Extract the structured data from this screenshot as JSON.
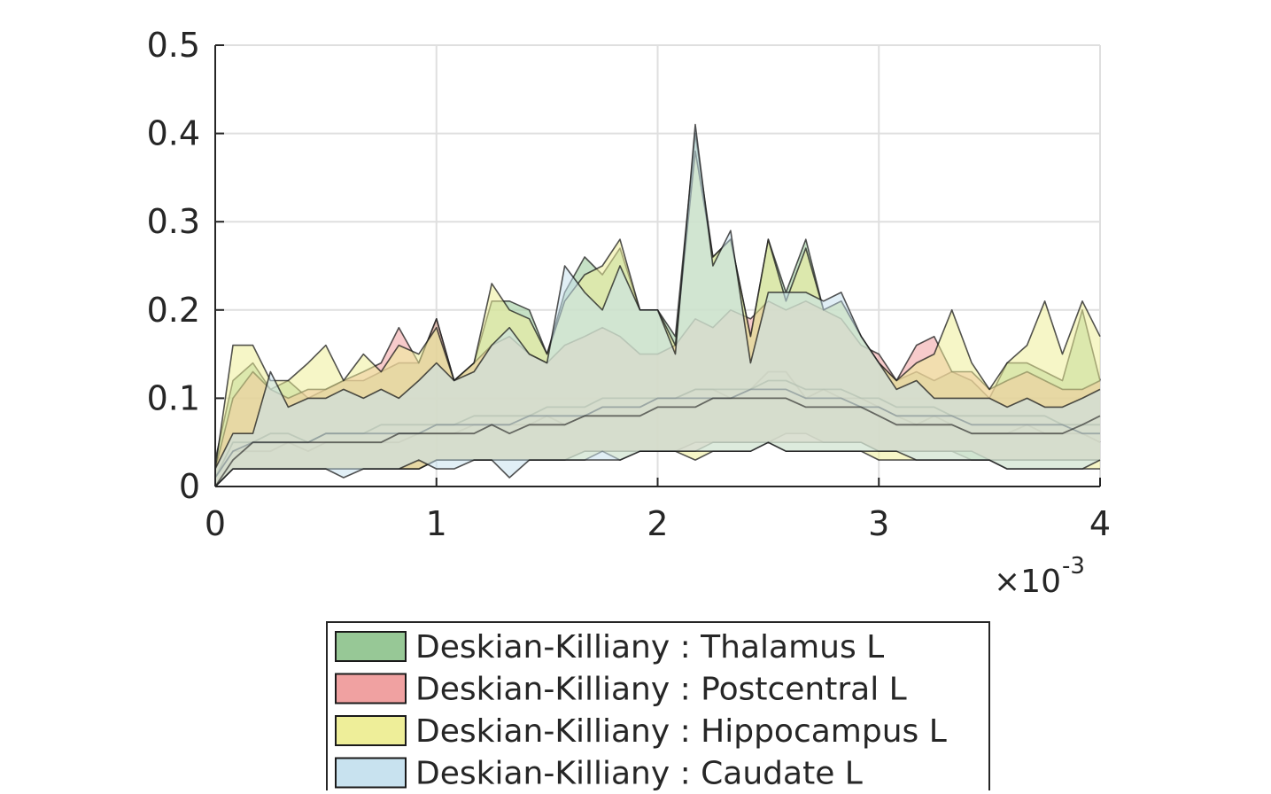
{
  "chart_data": {
    "type": "area",
    "title": "",
    "xlabel": "",
    "ylabel": "",
    "x_exponent_label": "×10",
    "x_exponent_power": "-3",
    "xlim": [
      0,
      4
    ],
    "ylim": [
      0,
      0.5
    ],
    "xticks": [
      0,
      1,
      2,
      3,
      4
    ],
    "xtick_labels": [
      "0",
      "1",
      "2",
      "3",
      "4"
    ],
    "yticks": [
      0,
      0.1,
      0.2,
      0.3,
      0.4,
      0.5
    ],
    "ytick_labels": [
      "0",
      "0.1",
      "0.2",
      "0.3",
      "0.4",
      "0.5"
    ],
    "grid": true,
    "legend_position": "bottom-center",
    "x": [
      0,
      0.08,
      0.17,
      0.25,
      0.33,
      0.42,
      0.5,
      0.58,
      0.67,
      0.75,
      0.83,
      0.92,
      1.0,
      1.08,
      1.17,
      1.25,
      1.33,
      1.42,
      1.5,
      1.58,
      1.67,
      1.75,
      1.83,
      1.92,
      2.0,
      2.08,
      2.17,
      2.25,
      2.33,
      2.42,
      2.5,
      2.58,
      2.67,
      2.75,
      2.83,
      2.92,
      3.0,
      3.08,
      3.17,
      3.25,
      3.33,
      3.42,
      3.5,
      3.58,
      3.67,
      3.75,
      3.83,
      3.92,
      4.0
    ],
    "series": [
      {
        "name": "Deskian-Killiany : Thalamus L",
        "color": "#97c896",
        "upper": [
          0.03,
          0.12,
          0.14,
          0.11,
          0.12,
          0.1,
          0.11,
          0.12,
          0.12,
          0.13,
          0.14,
          0.14,
          0.19,
          0.12,
          0.14,
          0.21,
          0.21,
          0.2,
          0.15,
          0.22,
          0.26,
          0.24,
          0.27,
          0.2,
          0.2,
          0.17,
          0.4,
          0.26,
          0.28,
          0.17,
          0.28,
          0.22,
          0.28,
          0.2,
          0.21,
          0.17,
          0.14,
          0.12,
          0.13,
          0.12,
          0.13,
          0.12,
          0.1,
          0.14,
          0.14,
          0.13,
          0.12,
          0.2,
          0.12
        ],
        "mean": [
          0.01,
          0.04,
          0.04,
          0.04,
          0.05,
          0.04,
          0.05,
          0.05,
          0.05,
          0.05,
          0.05,
          0.06,
          0.06,
          0.06,
          0.07,
          0.07,
          0.07,
          0.07,
          0.08,
          0.07,
          0.08,
          0.09,
          0.09,
          0.09,
          0.1,
          0.1,
          0.11,
          0.11,
          0.1,
          0.11,
          0.13,
          0.13,
          0.1,
          0.11,
          0.1,
          0.1,
          0.09,
          0.08,
          0.07,
          0.08,
          0.07,
          0.06,
          0.06,
          0.06,
          0.07,
          0.06,
          0.06,
          0.06,
          0.05
        ],
        "lower": [
          0.0,
          0.02,
          0.02,
          0.02,
          0.02,
          0.02,
          0.02,
          0.02,
          0.02,
          0.02,
          0.02,
          0.02,
          0.03,
          0.03,
          0.03,
          0.03,
          0.03,
          0.03,
          0.03,
          0.03,
          0.04,
          0.04,
          0.04,
          0.04,
          0.04,
          0.04,
          0.05,
          0.05,
          0.05,
          0.05,
          0.05,
          0.06,
          0.06,
          0.05,
          0.05,
          0.05,
          0.04,
          0.04,
          0.04,
          0.04,
          0.04,
          0.03,
          0.03,
          0.03,
          0.03,
          0.03,
          0.03,
          0.03,
          0.03
        ]
      },
      {
        "name": "Deskian-Killiany : Postcentral L",
        "color": "#f0a1a1",
        "upper": [
          0.02,
          0.1,
          0.13,
          0.11,
          0.1,
          0.11,
          0.11,
          0.12,
          0.13,
          0.14,
          0.18,
          0.14,
          0.19,
          0.12,
          0.14,
          0.16,
          0.17,
          0.15,
          0.14,
          0.16,
          0.17,
          0.18,
          0.17,
          0.15,
          0.15,
          0.16,
          0.19,
          0.18,
          0.2,
          0.19,
          0.21,
          0.2,
          0.21,
          0.2,
          0.19,
          0.16,
          0.15,
          0.12,
          0.16,
          0.17,
          0.13,
          0.13,
          0.11,
          0.12,
          0.13,
          0.12,
          0.11,
          0.11,
          0.12
        ],
        "mean": [
          0.01,
          0.05,
          0.05,
          0.06,
          0.06,
          0.05,
          0.06,
          0.06,
          0.06,
          0.07,
          0.07,
          0.07,
          0.07,
          0.07,
          0.08,
          0.08,
          0.08,
          0.08,
          0.09,
          0.09,
          0.09,
          0.1,
          0.1,
          0.1,
          0.1,
          0.1,
          0.11,
          0.11,
          0.11,
          0.11,
          0.12,
          0.12,
          0.11,
          0.11,
          0.11,
          0.1,
          0.1,
          0.09,
          0.09,
          0.09,
          0.08,
          0.08,
          0.08,
          0.08,
          0.08,
          0.08,
          0.07,
          0.07,
          0.07
        ],
        "lower": [
          0.0,
          0.02,
          0.02,
          0.02,
          0.02,
          0.02,
          0.02,
          0.02,
          0.02,
          0.02,
          0.02,
          0.02,
          0.03,
          0.03,
          0.03,
          0.03,
          0.03,
          0.03,
          0.03,
          0.03,
          0.04,
          0.04,
          0.04,
          0.04,
          0.04,
          0.04,
          0.04,
          0.05,
          0.05,
          0.05,
          0.05,
          0.05,
          0.05,
          0.05,
          0.05,
          0.05,
          0.04,
          0.04,
          0.04,
          0.04,
          0.04,
          0.04,
          0.03,
          0.03,
          0.03,
          0.03,
          0.03,
          0.03,
          0.03
        ]
      },
      {
        "name": "Deskian-Killiany : Hippocampus L",
        "color": "#eeee99",
        "upper": [
          0.02,
          0.16,
          0.16,
          0.12,
          0.12,
          0.14,
          0.16,
          0.12,
          0.15,
          0.13,
          0.16,
          0.15,
          0.18,
          0.12,
          0.14,
          0.23,
          0.2,
          0.19,
          0.15,
          0.21,
          0.24,
          0.25,
          0.28,
          0.2,
          0.2,
          0.16,
          0.38,
          0.26,
          0.28,
          0.17,
          0.28,
          0.21,
          0.27,
          0.2,
          0.21,
          0.17,
          0.14,
          0.12,
          0.14,
          0.15,
          0.2,
          0.14,
          0.11,
          0.14,
          0.16,
          0.21,
          0.15,
          0.21,
          0.17
        ],
        "mean": [
          0.01,
          0.04,
          0.05,
          0.05,
          0.05,
          0.05,
          0.06,
          0.06,
          0.06,
          0.06,
          0.06,
          0.06,
          0.07,
          0.07,
          0.07,
          0.07,
          0.07,
          0.08,
          0.08,
          0.08,
          0.08,
          0.09,
          0.09,
          0.09,
          0.1,
          0.1,
          0.1,
          0.1,
          0.1,
          0.11,
          0.11,
          0.11,
          0.1,
          0.1,
          0.1,
          0.09,
          0.09,
          0.08,
          0.08,
          0.08,
          0.08,
          0.07,
          0.07,
          0.07,
          0.07,
          0.07,
          0.07,
          0.06,
          0.06
        ],
        "lower": [
          0.0,
          0.02,
          0.02,
          0.02,
          0.02,
          0.02,
          0.02,
          0.02,
          0.02,
          0.02,
          0.02,
          0.02,
          0.03,
          0.03,
          0.03,
          0.03,
          0.03,
          0.03,
          0.03,
          0.03,
          0.03,
          0.04,
          0.03,
          0.04,
          0.04,
          0.04,
          0.03,
          0.04,
          0.04,
          0.04,
          0.05,
          0.04,
          0.04,
          0.04,
          0.04,
          0.04,
          0.03,
          0.03,
          0.03,
          0.03,
          0.03,
          0.03,
          0.03,
          0.02,
          0.02,
          0.02,
          0.02,
          0.02,
          0.02
        ]
      },
      {
        "name": "Deskian-Killiany : Caudate L",
        "color": "#c8e2ef",
        "upper": [
          0.02,
          0.06,
          0.06,
          0.13,
          0.09,
          0.1,
          0.1,
          0.11,
          0.1,
          0.11,
          0.1,
          0.12,
          0.14,
          0.12,
          0.13,
          0.16,
          0.18,
          0.15,
          0.14,
          0.25,
          0.22,
          0.2,
          0.25,
          0.2,
          0.2,
          0.15,
          0.41,
          0.25,
          0.29,
          0.14,
          0.22,
          0.22,
          0.22,
          0.21,
          0.22,
          0.17,
          0.14,
          0.11,
          0.12,
          0.1,
          0.1,
          0.1,
          0.1,
          0.09,
          0.1,
          0.09,
          0.09,
          0.1,
          0.11
        ],
        "mean": [
          0.0,
          0.03,
          0.05,
          0.05,
          0.05,
          0.05,
          0.05,
          0.05,
          0.05,
          0.05,
          0.06,
          0.06,
          0.06,
          0.06,
          0.06,
          0.07,
          0.06,
          0.07,
          0.07,
          0.07,
          0.08,
          0.08,
          0.08,
          0.08,
          0.09,
          0.09,
          0.09,
          0.1,
          0.1,
          0.1,
          0.1,
          0.1,
          0.09,
          0.09,
          0.09,
          0.09,
          0.08,
          0.07,
          0.07,
          0.07,
          0.07,
          0.06,
          0.06,
          0.06,
          0.06,
          0.06,
          0.06,
          0.07,
          0.08
        ],
        "lower": [
          0.0,
          0.02,
          0.02,
          0.02,
          0.02,
          0.02,
          0.02,
          0.01,
          0.02,
          0.02,
          0.02,
          0.03,
          0.02,
          0.02,
          0.03,
          0.03,
          0.01,
          0.03,
          0.03,
          0.03,
          0.03,
          0.03,
          0.03,
          0.04,
          0.04,
          0.04,
          0.04,
          0.04,
          0.04,
          0.04,
          0.05,
          0.04,
          0.04,
          0.04,
          0.04,
          0.04,
          0.04,
          0.04,
          0.03,
          0.03,
          0.03,
          0.03,
          0.03,
          0.02,
          0.02,
          0.02,
          0.02,
          0.02,
          0.03
        ]
      }
    ]
  }
}
